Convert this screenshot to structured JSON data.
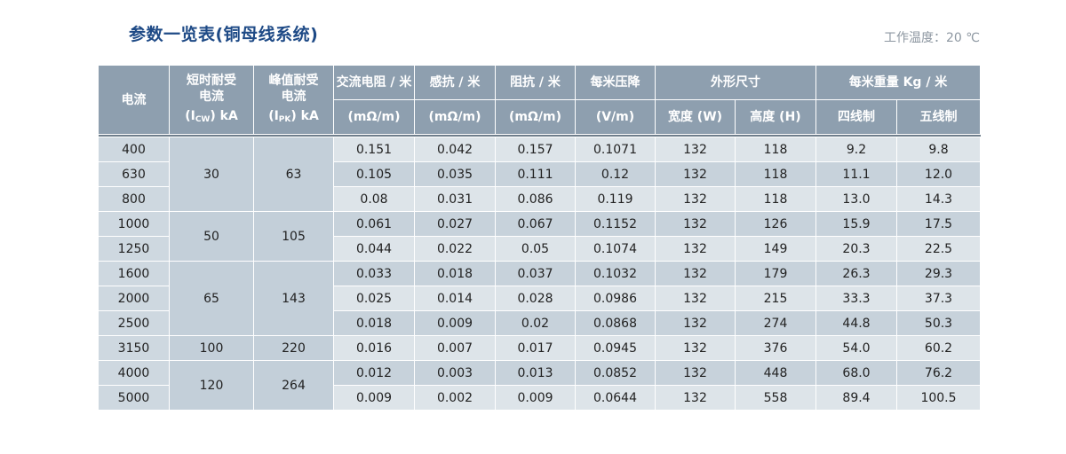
{
  "title": "参数一览表(铜母线系统)",
  "temperature_note": "工作温度：20 ℃",
  "headers": {
    "current": "电流",
    "short_time_line1": "短时耐受",
    "short_time_line2": "电流",
    "short_time_unit_prefix": "(I",
    "short_time_unit_sub": "CW",
    "short_time_unit_suffix": ") kA",
    "peak_line1": "峰值耐受",
    "peak_line2": "电流",
    "peak_unit_prefix": "(I",
    "peak_unit_sub": "PK",
    "peak_unit_suffix": ") kA",
    "ac_resistance": "交流电阻 / 米",
    "ac_resistance_unit": "(mΩ/m)",
    "reactance": "感抗 / 米",
    "reactance_unit": "(mΩ/m)",
    "impedance": "阻抗 / 米",
    "impedance_unit": "(mΩ/m)",
    "voltage_drop": "每米压降",
    "voltage_drop_unit": "(V/m)",
    "dimensions": "外形尺寸",
    "width": "宽度 (W)",
    "height": "高度 (H)",
    "weight": "每米重量 Kg / 米",
    "four_wire": "四线制",
    "five_wire": "五线制"
  },
  "rows": [
    {
      "current": "400",
      "r": "0.151",
      "x": "0.042",
      "z": "0.157",
      "vd": "0.1071",
      "w": "132",
      "h": "118",
      "w4": "9.2",
      "w5": "9.8"
    },
    {
      "current": "630",
      "r": "0.105",
      "x": "0.035",
      "z": "0.111",
      "vd": "0.12",
      "w": "132",
      "h": "118",
      "w4": "11.1",
      "w5": "12.0"
    },
    {
      "current": "800",
      "r": "0.08",
      "x": "0.031",
      "z": "0.086",
      "vd": "0.119",
      "w": "132",
      "h": "118",
      "w4": "13.0",
      "w5": "14.3"
    },
    {
      "current": "1000",
      "r": "0.061",
      "x": "0.027",
      "z": "0.067",
      "vd": "0.1152",
      "w": "132",
      "h": "126",
      "w4": "15.9",
      "w5": "17.5"
    },
    {
      "current": "1250",
      "r": "0.044",
      "x": "0.022",
      "z": "0.05",
      "vd": "0.1074",
      "w": "132",
      "h": "149",
      "w4": "20.3",
      "w5": "22.5"
    },
    {
      "current": "1600",
      "r": "0.033",
      "x": "0.018",
      "z": "0.037",
      "vd": "0.1032",
      "w": "132",
      "h": "179",
      "w4": "26.3",
      "w5": "29.3"
    },
    {
      "current": "2000",
      "r": "0.025",
      "x": "0.014",
      "z": "0.028",
      "vd": "0.0986",
      "w": "132",
      "h": "215",
      "w4": "33.3",
      "w5": "37.3"
    },
    {
      "current": "2500",
      "r": "0.018",
      "x": "0.009",
      "z": "0.02",
      "vd": "0.0868",
      "w": "132",
      "h": "274",
      "w4": "44.8",
      "w5": "50.3"
    },
    {
      "current": "3150",
      "r": "0.016",
      "x": "0.007",
      "z": "0.017",
      "vd": "0.0945",
      "w": "132",
      "h": "376",
      "w4": "54.0",
      "w5": "60.2"
    },
    {
      "current": "4000",
      "r": "0.012",
      "x": "0.003",
      "z": "0.013",
      "vd": "0.0852",
      "w": "132",
      "h": "448",
      "w4": "68.0",
      "w5": "76.2"
    },
    {
      "current": "5000",
      "r": "0.009",
      "x": "0.002",
      "z": "0.009",
      "vd": "0.0644",
      "w": "132",
      "h": "558",
      "w4": "89.4",
      "w5": "100.5"
    }
  ],
  "groups": [
    {
      "start": 0,
      "span": 3,
      "icw": "30",
      "ipk": "63"
    },
    {
      "start": 3,
      "span": 2,
      "icw": "50",
      "ipk": "105"
    },
    {
      "start": 5,
      "span": 3,
      "icw": "65",
      "ipk": "143"
    },
    {
      "start": 8,
      "span": 1,
      "icw": "100",
      "ipk": "220"
    },
    {
      "start": 9,
      "span": 2,
      "icw": "120",
      "ipk": "264"
    }
  ],
  "colors": {
    "title": "#1e4a86",
    "header_bg": "#8e9faf",
    "row_light": "#dde4e9",
    "row_dark": "#c7d2db",
    "merged_cell": "#c3cfd9"
  }
}
